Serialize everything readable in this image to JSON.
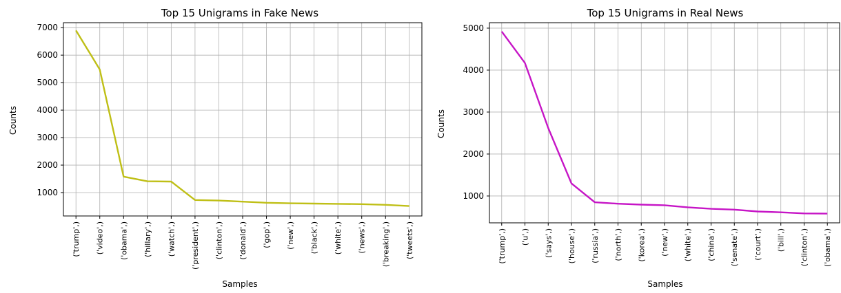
{
  "chart_data": [
    {
      "type": "line",
      "title": "Top 15 Unigrams in Fake News",
      "xlabel": "Samples",
      "ylabel": "Counts",
      "categories": [
        "('trump',)",
        "('video',)",
        "('obama',)",
        "('hillary',)",
        "('watch',)",
        "('president',)",
        "('clinton',)",
        "('donald',)",
        "('gop',)",
        "('new',)",
        "('black',)",
        "('white',)",
        "('news',)",
        "('breaking',)",
        "('tweets',)"
      ],
      "values": [
        6900,
        5480,
        1580,
        1410,
        1400,
        730,
        710,
        670,
        630,
        610,
        600,
        590,
        580,
        555,
        510
      ],
      "yticks": [
        1000,
        2000,
        3000,
        4000,
        5000,
        6000,
        7000
      ],
      "ylim": [
        150,
        7180
      ],
      "grid": true,
      "color": "#bfbf16"
    },
    {
      "type": "line",
      "title": "Top 15 Unigrams in Real News",
      "xlabel": "Samples",
      "ylabel": "Counts",
      "categories": [
        "('trump',)",
        "('u',)",
        "('says',)",
        "('house',)",
        "('russia',)",
        "('north',)",
        "('korea',)",
        "('new',)",
        "('white',)",
        "('china',)",
        "('senate',)",
        "('court',)",
        "('bill',)",
        "('clinton',)",
        "('obama',)"
      ],
      "values": [
        4920,
        4170,
        2620,
        1300,
        850,
        815,
        795,
        780,
        730,
        695,
        675,
        630,
        610,
        585,
        580
      ],
      "yticks": [
        1000,
        2000,
        3000,
        4000,
        5000
      ],
      "ylim": [
        360,
        5130
      ],
      "grid": true,
      "color": "#c615c6"
    }
  ]
}
